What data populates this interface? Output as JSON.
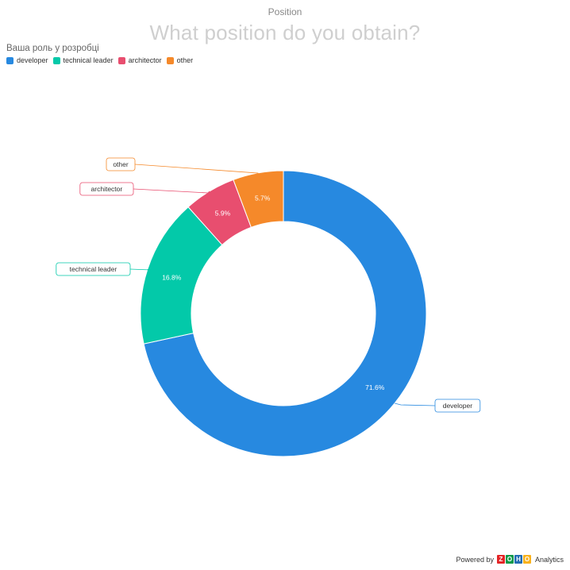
{
  "header": {
    "top_label": "Position",
    "title": "What position do you obtain?"
  },
  "legend": {
    "title": "Ваша роль у розробці",
    "items": [
      {
        "label": "developer",
        "color": "#2789e0"
      },
      {
        "label": "technical leader",
        "color": "#03c9a9"
      },
      {
        "label": "architector",
        "color": "#e84e6f"
      },
      {
        "label": "other",
        "color": "#f5892a"
      }
    ]
  },
  "chart_data": {
    "type": "pie",
    "donut": true,
    "categories": [
      "developer",
      "technical leader",
      "architector",
      "other"
    ],
    "values": [
      71.6,
      16.8,
      5.9,
      5.7
    ],
    "value_labels": [
      "71.6%",
      "16.8%",
      "5.9%",
      "5.7%"
    ],
    "colors": [
      "#2789e0",
      "#03c9a9",
      "#e84e6f",
      "#f5892a"
    ],
    "title": "What position do you obtain?",
    "legend_position": "top-left"
  },
  "footer": {
    "powered_by": "Powered by",
    "logo_letters": [
      "Z",
      "O",
      "H",
      "O"
    ],
    "logo_colors": [
      "#e42527",
      "#089949",
      "#226db4",
      "#f9b21d"
    ],
    "product": "Analytics"
  }
}
